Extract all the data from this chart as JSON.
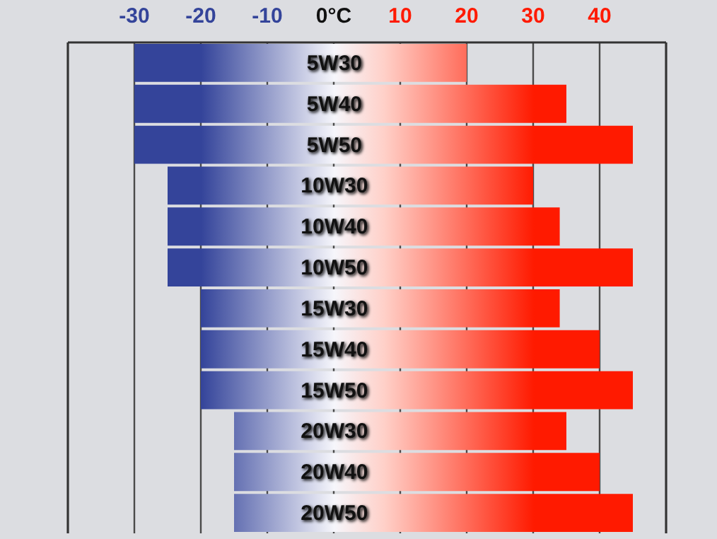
{
  "chart_data": {
    "type": "bar",
    "orientation": "horizontal",
    "stacked": true,
    "categories": [
      "5W30",
      "5W40",
      "5W50",
      "10W30",
      "10W40",
      "10W50",
      "15W30",
      "15W40",
      "15W50",
      "20W30",
      "20W40",
      "20W50"
    ],
    "series": [
      {
        "color": "#34449a",
        "values": [
          -30,
          -30,
          -30,
          -25,
          -25,
          -25,
          -20,
          -20,
          -20,
          -15,
          -15,
          -15
        ]
      },
      {
        "color": "#ff1a00",
        "values": [
          20,
          35,
          45,
          30,
          34,
          45,
          34,
          40,
          45,
          35,
          40,
          45
        ]
      }
    ],
    "xlim": [
      -40,
      50
    ],
    "xticks": [
      -30,
      -20,
      -10,
      {
        "value": 0,
        "label": "0°C"
      },
      10,
      20,
      30,
      40
    ],
    "grid": "x"
  }
}
